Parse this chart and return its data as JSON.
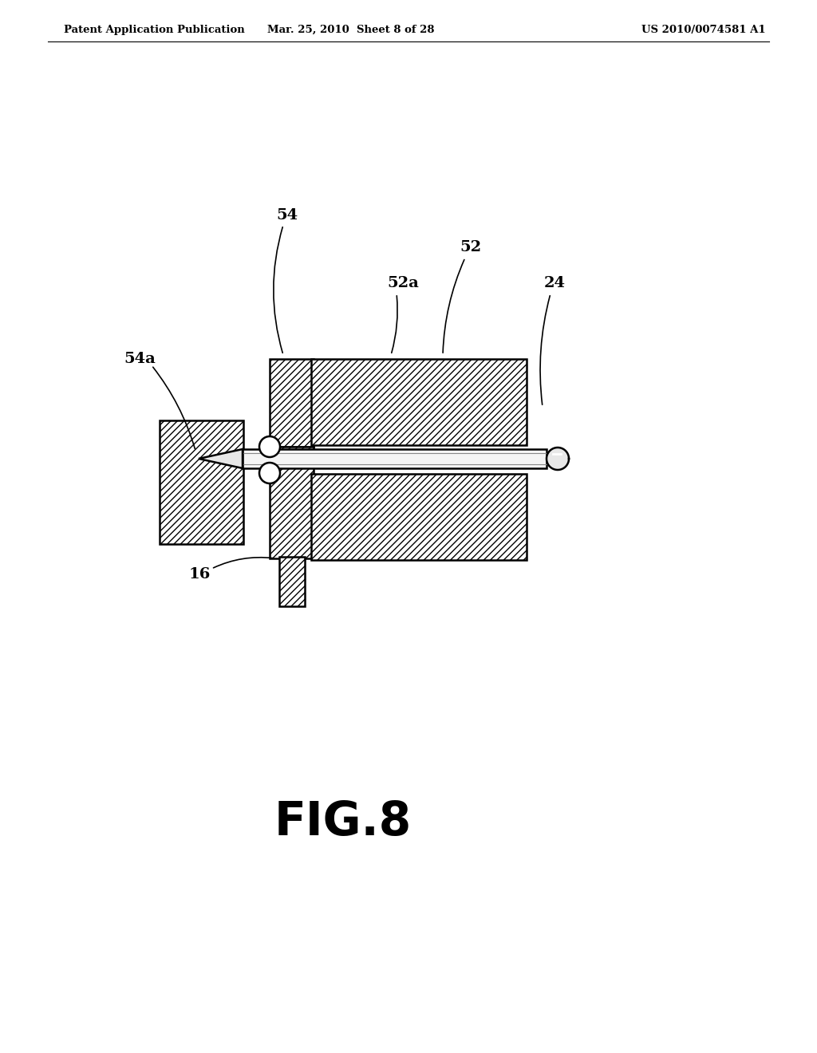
{
  "header_left": "Patent Application Publication",
  "header_center": "Mar. 25, 2010  Sheet 8 of 28",
  "header_right": "US 2010/0074581 A1",
  "figure_label": "FIG.8",
  "bg_color": "#ffffff",
  "line_color": "#000000",
  "fig_width": 10.24,
  "fig_height": 13.2,
  "dpi": 100
}
